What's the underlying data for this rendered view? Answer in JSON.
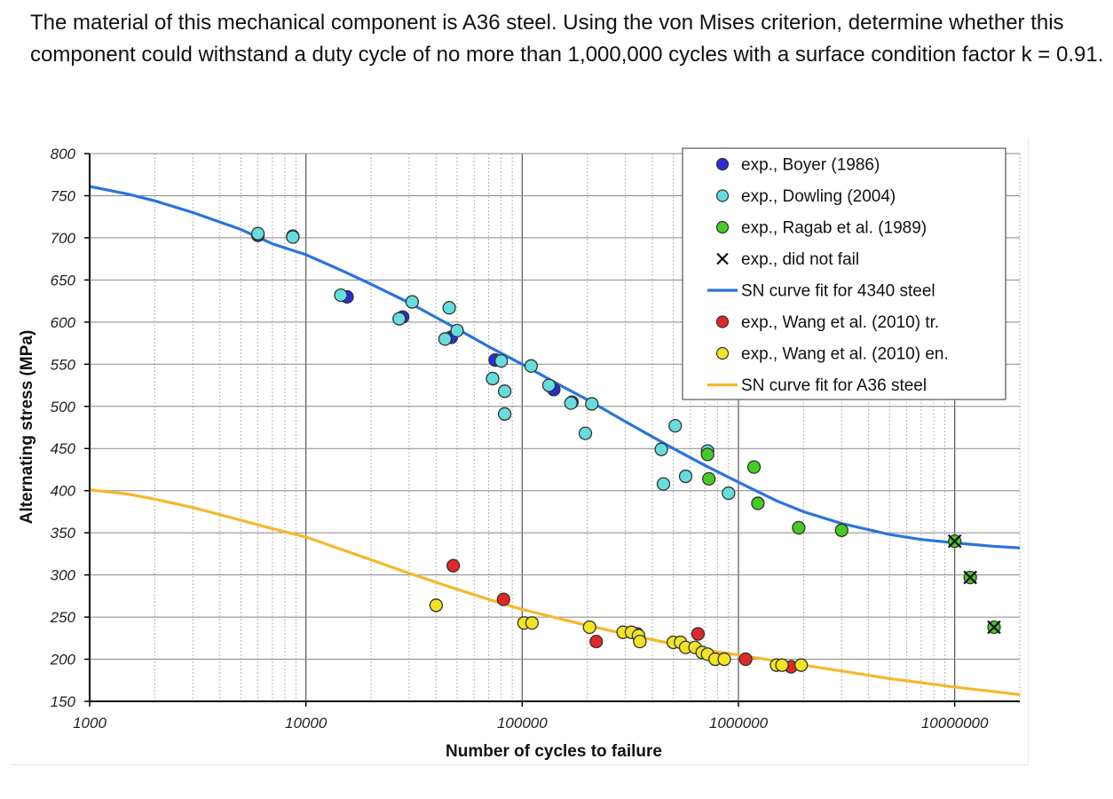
{
  "question": "The material of this mechanical component is A36 steel. Using the von Mises criterion, determine whether this component could withstand a duty cycle of no more than 1,000,000 cycles with a surface condition factor k = 0.91.",
  "chart_data": {
    "type": "scatter",
    "title": "",
    "xlabel": "Number of cycles to failure",
    "ylabel": "Alternating stress (MPa)",
    "xscale": "log",
    "xlim": [
      1000,
      20000000
    ],
    "ylim": [
      150,
      800
    ],
    "xticks": [
      1000,
      10000,
      100000,
      1000000,
      10000000
    ],
    "xtick_labels": [
      "1000",
      "10000",
      "100000",
      "1000000",
      "10000000"
    ],
    "yticks": [
      150,
      200,
      250,
      300,
      350,
      400,
      450,
      500,
      550,
      600,
      650,
      700,
      750,
      800
    ],
    "grid": true,
    "legend_position": "top-right",
    "colors": {
      "boyer": "#2b2bd6",
      "dowling": "#66dddd",
      "ragab": "#44cc22",
      "curve4340": "#2a74dc",
      "wang_tr": "#e12828",
      "wang_en": "#f2e424",
      "curveA36": "#f5b82a"
    },
    "series": [
      {
        "name": "exp., Boyer (1986)",
        "kind": "points",
        "color_key": "boyer",
        "points": [
          [
            6000,
            703
          ],
          [
            8700,
            702
          ],
          [
            15500,
            630
          ],
          [
            28000,
            606
          ],
          [
            47000,
            582
          ],
          [
            75000,
            555
          ],
          [
            140000,
            520
          ],
          [
            170000,
            505
          ]
        ]
      },
      {
        "name": "exp., Dowling (2004)",
        "kind": "points",
        "color_key": "dowling",
        "points": [
          [
            6000,
            705
          ],
          [
            8700,
            701
          ],
          [
            14500,
            632
          ],
          [
            27000,
            604
          ],
          [
            31000,
            624
          ],
          [
            44000,
            580
          ],
          [
            46000,
            617
          ],
          [
            50000,
            590
          ],
          [
            73000,
            533
          ],
          [
            80000,
            554
          ],
          [
            83000,
            518
          ],
          [
            83000,
            491
          ],
          [
            110000,
            548
          ],
          [
            133000,
            525
          ],
          [
            168000,
            504
          ],
          [
            196000,
            468
          ],
          [
            210000,
            503
          ],
          [
            440000,
            449
          ],
          [
            450000,
            408
          ],
          [
            510000,
            477
          ],
          [
            570000,
            417
          ],
          [
            720000,
            447
          ],
          [
            900000,
            397
          ]
        ]
      },
      {
        "name": "exp., Ragab et al. (1989)",
        "kind": "points",
        "color_key": "ragab",
        "points": [
          [
            720000,
            443
          ],
          [
            730000,
            414
          ],
          [
            1180000,
            428
          ],
          [
            1230000,
            385
          ],
          [
            1900000,
            356
          ],
          [
            3000000,
            353
          ],
          [
            10000000,
            340
          ],
          [
            11800000,
            297
          ],
          [
            15200000,
            238
          ]
        ]
      },
      {
        "name": "exp., did not fail",
        "kind": "markers",
        "points": [
          [
            10000000,
            340
          ],
          [
            11800000,
            297
          ],
          [
            15200000,
            238
          ]
        ]
      },
      {
        "name": "SN curve fit for 4340 steel",
        "kind": "line",
        "color_key": "curve4340",
        "points": [
          [
            1000,
            761
          ],
          [
            1500,
            752
          ],
          [
            2000,
            744
          ],
          [
            3000,
            730
          ],
          [
            5000,
            710
          ],
          [
            7000,
            693
          ],
          [
            10000,
            680
          ],
          [
            15000,
            660
          ],
          [
            20000,
            645
          ],
          [
            30000,
            623
          ],
          [
            50000,
            592
          ],
          [
            70000,
            571
          ],
          [
            100000,
            550
          ],
          [
            150000,
            525
          ],
          [
            200000,
            508
          ],
          [
            300000,
            482
          ],
          [
            500000,
            450
          ],
          [
            700000,
            430
          ],
          [
            1000000,
            410
          ],
          [
            1500000,
            388
          ],
          [
            2000000,
            375
          ],
          [
            3000000,
            361
          ],
          [
            5000000,
            348
          ],
          [
            7000000,
            342
          ],
          [
            10000000,
            338
          ],
          [
            15000000,
            334
          ],
          [
            20000000,
            332
          ]
        ]
      },
      {
        "name": "exp., Wang et al. (2010) tr.",
        "kind": "points",
        "color_key": "wang_tr",
        "points": [
          [
            48000,
            311
          ],
          [
            82000,
            271
          ],
          [
            220000,
            221
          ],
          [
            340000,
            230
          ],
          [
            650000,
            230
          ],
          [
            1080000,
            200
          ],
          [
            1750000,
            191
          ]
        ]
      },
      {
        "name": "exp., Wang et al. (2010) en.",
        "kind": "points",
        "color_key": "wang_en",
        "points": [
          [
            40000,
            264
          ],
          [
            102000,
            243
          ],
          [
            111000,
            243
          ],
          [
            205000,
            238
          ],
          [
            293000,
            232
          ],
          [
            320000,
            232
          ],
          [
            345000,
            228
          ],
          [
            350000,
            221
          ],
          [
            500000,
            220
          ],
          [
            540000,
            220
          ],
          [
            570000,
            214
          ],
          [
            630000,
            214
          ],
          [
            680000,
            208
          ],
          [
            720000,
            206
          ],
          [
            780000,
            200
          ],
          [
            860000,
            200
          ],
          [
            1500000,
            193
          ],
          [
            1590000,
            193
          ],
          [
            1950000,
            193
          ]
        ]
      },
      {
        "name": "SN curve fit for A36 steel",
        "kind": "line",
        "color_key": "curveA36",
        "points": [
          [
            1000,
            401
          ],
          [
            1500,
            396
          ],
          [
            2000,
            390
          ],
          [
            3000,
            380
          ],
          [
            5000,
            365
          ],
          [
            7000,
            355
          ],
          [
            10000,
            345
          ],
          [
            20000,
            318
          ],
          [
            30000,
            302
          ],
          [
            50000,
            283
          ],
          [
            70000,
            271
          ],
          [
            100000,
            259
          ],
          [
            150000,
            248
          ],
          [
            200000,
            240
          ],
          [
            300000,
            230
          ],
          [
            500000,
            218
          ],
          [
            700000,
            211
          ],
          [
            1000000,
            205
          ],
          [
            2000000,
            193
          ],
          [
            3000000,
            186
          ],
          [
            5000000,
            177
          ],
          [
            10000000,
            167
          ],
          [
            20000000,
            158
          ]
        ]
      }
    ]
  }
}
